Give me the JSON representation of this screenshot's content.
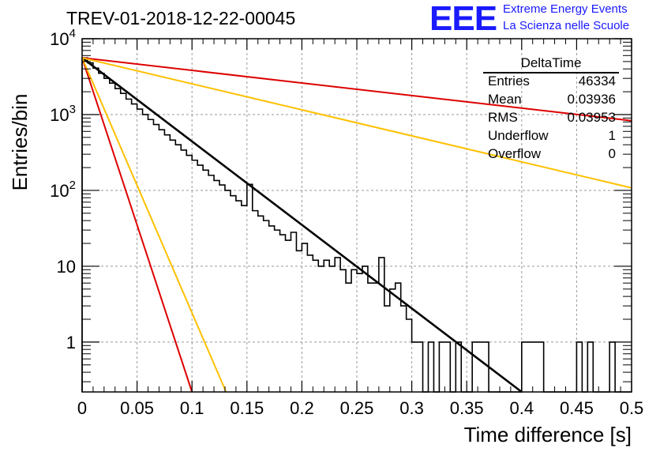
{
  "title": "TREV-01-2018-12-22-00045",
  "logo": {
    "mark": "EEE",
    "line1": "Extreme Energy Events",
    "line2": "La Scienza nelle Scuole"
  },
  "stats": {
    "name": "DeltaTime",
    "rows": [
      {
        "label": "Entries",
        "value": "46334"
      },
      {
        "label": "Mean",
        "value": "0.03936"
      },
      {
        "label": "RMS",
        "value": "0.03953"
      },
      {
        "label": "Underflow",
        "value": "1"
      },
      {
        "label": "Overflow",
        "value": "0"
      }
    ]
  },
  "chart_data": {
    "type": "line",
    "xlabel": "Time difference [s]",
    "ylabel": "Entries/bin",
    "xlim": [
      0,
      0.5
    ],
    "ylim": [
      0.22,
      10000
    ],
    "log_y": true,
    "grid": true,
    "xticks": [
      "0",
      "0.05",
      "0.1",
      "0.15",
      "0.2",
      "0.25",
      "0.3",
      "0.35",
      "0.4",
      "0.45",
      "0.5"
    ],
    "yticks": [
      {
        "value": 10000,
        "label": "10^4"
      },
      {
        "value": 1000,
        "label": "10^3"
      },
      {
        "value": 100,
        "label": "10^2"
      },
      {
        "value": 10,
        "label": "10"
      },
      {
        "value": 1,
        "label": "1"
      }
    ],
    "histogram": {
      "bin_width": 0.005,
      "counts": [
        5600,
        4800,
        4100,
        3500,
        3000,
        2600,
        2200,
        1900,
        1600,
        1380,
        1180,
        1000,
        860,
        740,
        630,
        540,
        460,
        400,
        340,
        290,
        250,
        215,
        185,
        158,
        135,
        118,
        100,
        85,
        73,
        63,
        120,
        54,
        46,
        40,
        34,
        30,
        26,
        22,
        28,
        16,
        20,
        14,
        12,
        10,
        12,
        10,
        13,
        9,
        6,
        9,
        8,
        10,
        6,
        6,
        13,
        3,
        5,
        6,
        3,
        2,
        1,
        1,
        0,
        1,
        0,
        1,
        1,
        0,
        1,
        0,
        0,
        1,
        1,
        1,
        0,
        0,
        0,
        0,
        0,
        0,
        1,
        1,
        1,
        1,
        0,
        0,
        0,
        0,
        0,
        0,
        1,
        0,
        1,
        0,
        0,
        0,
        1,
        0,
        0,
        0
      ]
    },
    "series": [
      {
        "color": "#000000",
        "x": [
          0,
          0.4
        ],
        "y": [
          5600,
          0.22
        ]
      },
      {
        "color": "#dd0000",
        "x": [
          0,
          0.5
        ],
        "y": [
          5600,
          830
        ]
      },
      {
        "color": "#ffc000",
        "x": [
          0,
          0.5
        ],
        "y": [
          5600,
          108
        ]
      },
      {
        "color": "#dd0000",
        "x": [
          0,
          0.1
        ],
        "y": [
          5600,
          0.22
        ]
      },
      {
        "color": "#ffc000",
        "x": [
          0,
          0.131
        ],
        "y": [
          5600,
          0.22
        ]
      }
    ]
  }
}
